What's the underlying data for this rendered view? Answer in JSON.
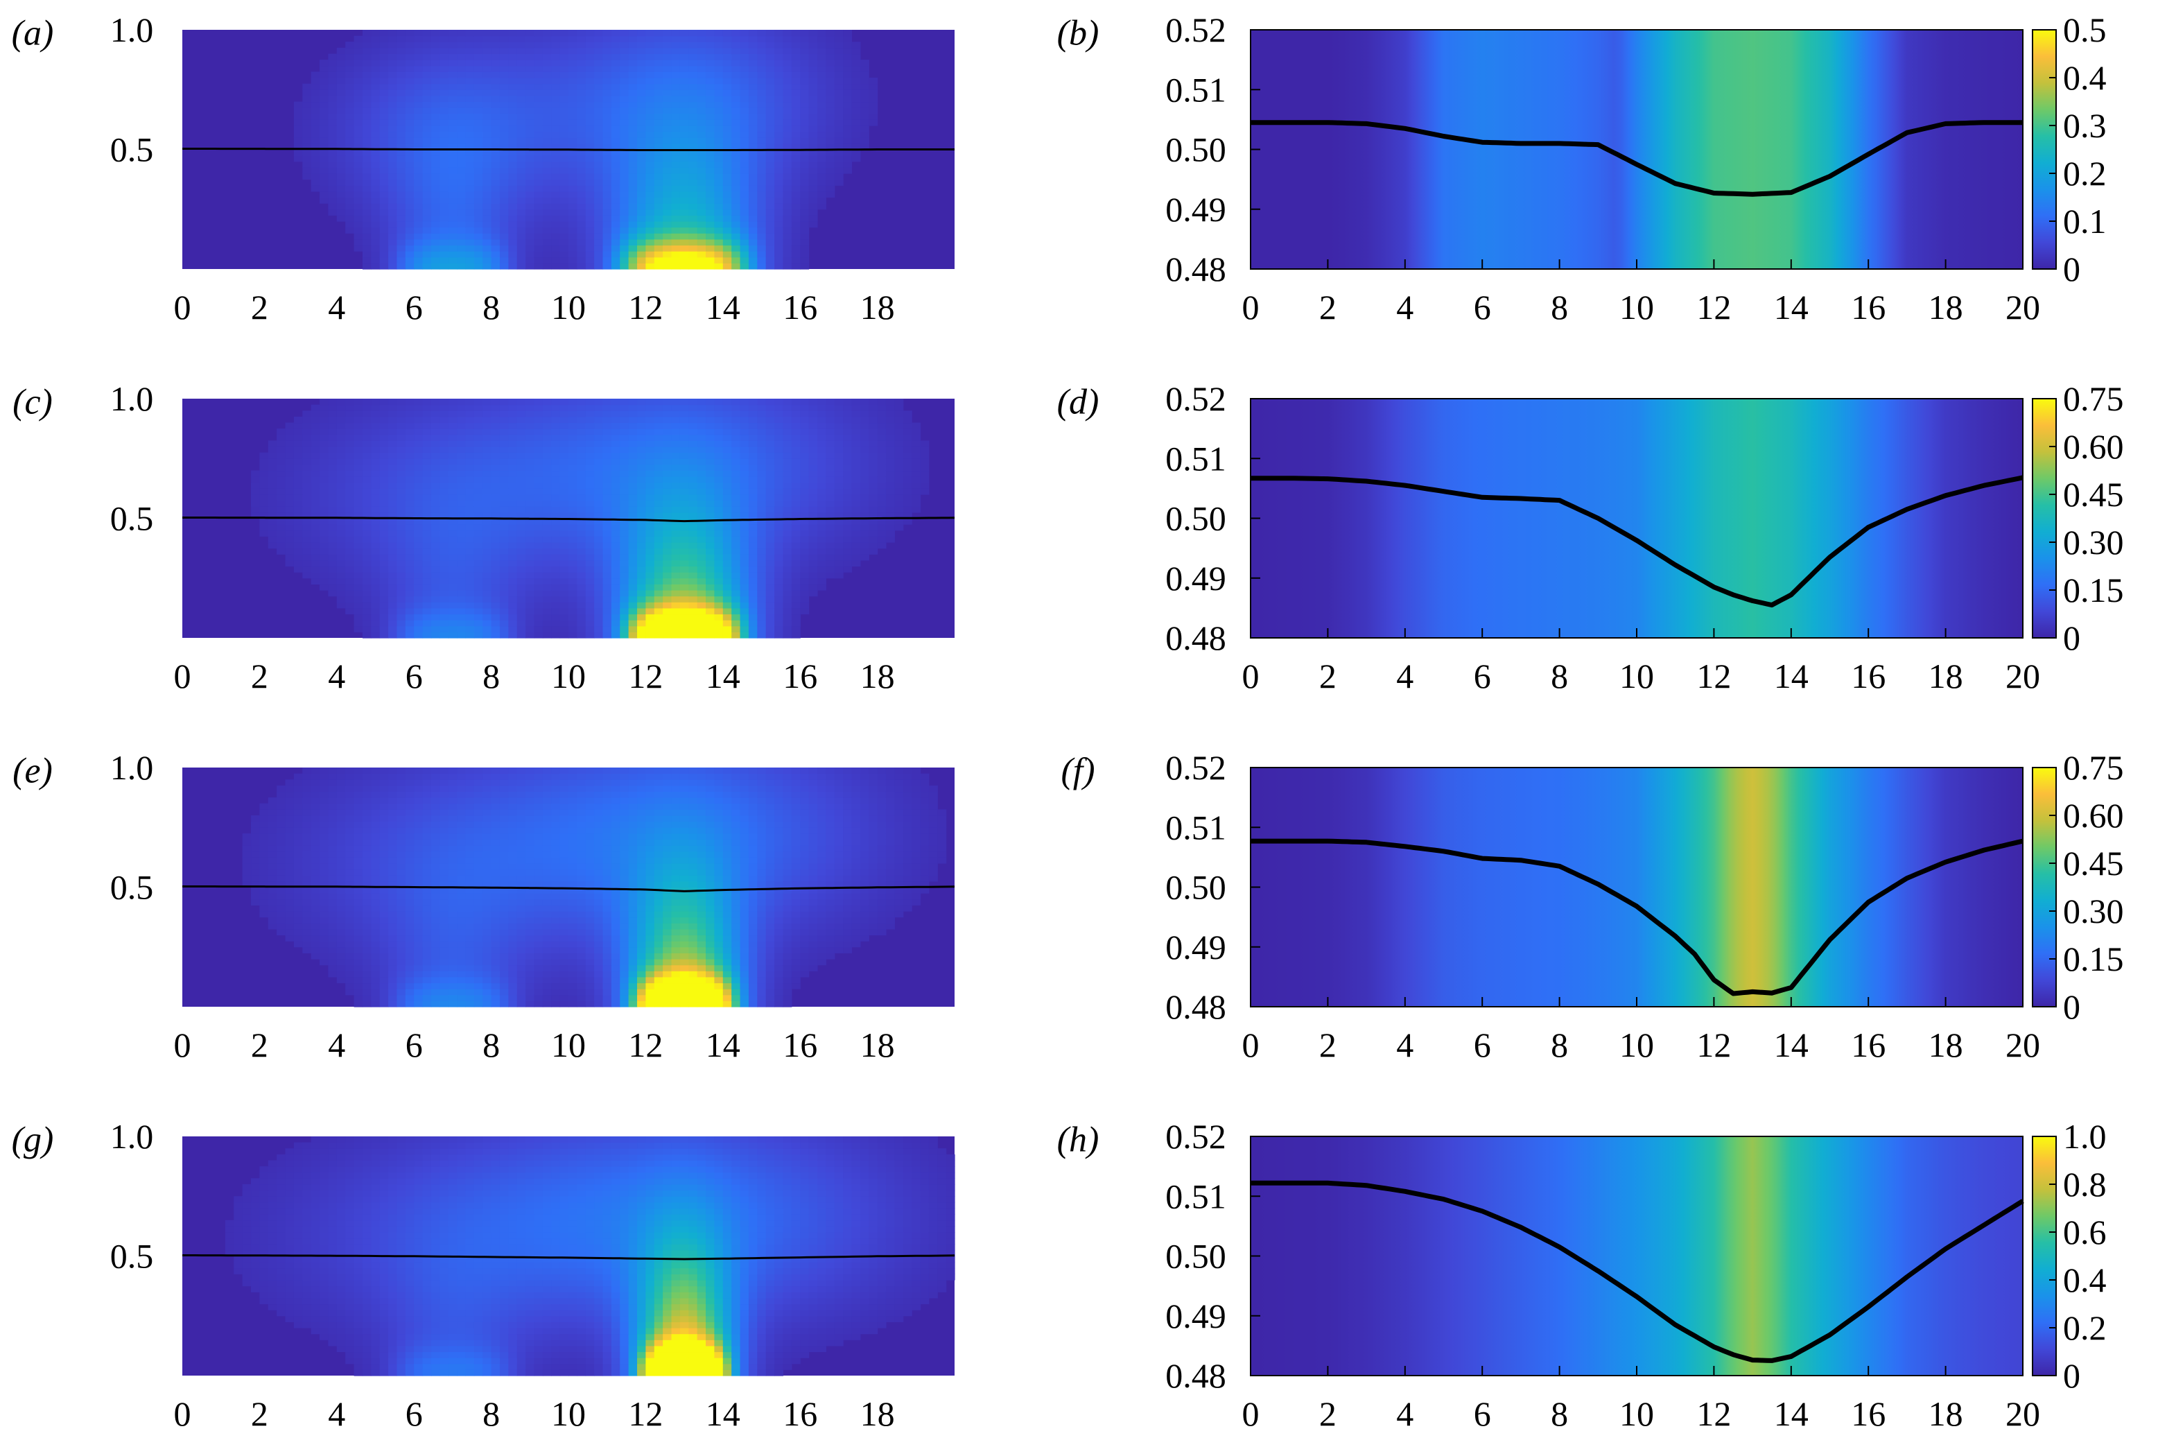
{
  "figure_colors": {
    "colormap": [
      "#3e26a8",
      "#4148d8",
      "#2f6ff6",
      "#1a92ea",
      "#11aed2",
      "#26bfa6",
      "#6fc967",
      "#c4c13c",
      "#fbbe3a",
      "#f9fb0e"
    ],
    "interface_line": "#000000"
  },
  "chart_data": [
    {
      "panel": "(a)",
      "type": "heatmap",
      "xlim": [
        0,
        20
      ],
      "ylim": [
        0,
        1.0
      ],
      "xticks": [
        "0",
        "2",
        "4",
        "6",
        "8",
        "10",
        "12",
        "14",
        "16",
        "18"
      ],
      "yticks": [
        "1.0",
        "0.5"
      ],
      "field": {
        "scale": 0.52,
        "plumes": [
          {
            "x": 7,
            "width": 1.6,
            "amp": 0.16,
            "cap_y": 0.58,
            "cap_wx": 3.2,
            "cap_wy": 0.38,
            "cap_amp": 0.16
          },
          {
            "x": 13,
            "width": 1.8,
            "amp": 0.5,
            "cap_y": 0.7,
            "cap_wx": 3.6,
            "cap_wy": 0.4,
            "cap_amp": 0.2
          }
        ]
      },
      "interface": {
        "x": [
          0,
          4,
          6,
          8,
          10,
          12,
          13,
          14,
          16,
          18,
          20
        ],
        "y": [
          0.503,
          0.502,
          0.5,
          0.5,
          0.499,
          0.497,
          0.497,
          0.497,
          0.498,
          0.5,
          0.5
        ]
      }
    },
    {
      "panel": "(b)",
      "type": "heatmap_line",
      "xlim": [
        0,
        20
      ],
      "ylim": [
        0.48,
        0.52
      ],
      "xticks": [
        "0",
        "2",
        "4",
        "6",
        "8",
        "10",
        "12",
        "14",
        "16",
        "18",
        "20"
      ],
      "yticks": [
        "0.52",
        "0.51",
        "0.50",
        "0.49",
        "0.48"
      ],
      "colorbar_ticks": [
        "0.5",
        "0.4",
        "0.3",
        "0.2",
        "0.1",
        "0"
      ],
      "colorbar_range": [
        0,
        0.5
      ],
      "field_profile": {
        "x": [
          0,
          2,
          3,
          4,
          5,
          6,
          7,
          8,
          9,
          9.5,
          10,
          11,
          12,
          13,
          14,
          15,
          16,
          17,
          18,
          20
        ],
        "v": [
          0.0,
          0.0,
          0.01,
          0.04,
          0.12,
          0.14,
          0.13,
          0.12,
          0.1,
          0.08,
          0.14,
          0.24,
          0.3,
          0.31,
          0.3,
          0.24,
          0.12,
          0.03,
          0.01,
          0.0
        ]
      },
      "interface": {
        "x": [
          0,
          1,
          2,
          3,
          4,
          5,
          6,
          7,
          8,
          9,
          10,
          11,
          12,
          13,
          14,
          15,
          16,
          17,
          18,
          19,
          20
        ],
        "y": [
          0.5045,
          0.5045,
          0.5045,
          0.5043,
          0.5035,
          0.5022,
          0.5012,
          0.501,
          0.501,
          0.5008,
          0.4975,
          0.4943,
          0.4927,
          0.4925,
          0.4928,
          0.4955,
          0.4992,
          0.5028,
          0.5043,
          0.5045,
          0.5045
        ]
      }
    },
    {
      "panel": "(c)",
      "type": "heatmap",
      "xlim": [
        0,
        20
      ],
      "ylim": [
        0,
        1.0
      ],
      "xticks": [
        "0",
        "2",
        "4",
        "6",
        "8",
        "10",
        "12",
        "14",
        "16",
        "18"
      ],
      "yticks": [
        "1.0",
        "0.5"
      ],
      "field": {
        "scale": 0.78,
        "plumes": [
          {
            "x": 7,
            "width": 1.7,
            "amp": 0.12,
            "cap_y": 0.6,
            "cap_wx": 4.4,
            "cap_wy": 0.42,
            "cap_amp": 0.12
          },
          {
            "x": 13,
            "width": 1.6,
            "amp": 0.7,
            "cap_y": 0.72,
            "cap_wx": 4.6,
            "cap_wy": 0.42,
            "cap_amp": 0.2
          }
        ]
      },
      "interface": {
        "x": [
          0,
          4,
          6,
          8,
          10,
          12,
          13,
          14,
          16,
          18,
          20
        ],
        "y": [
          0.503,
          0.502,
          0.5,
          0.499,
          0.497,
          0.493,
          0.488,
          0.492,
          0.497,
          0.5,
          0.502
        ]
      }
    },
    {
      "panel": "(d)",
      "type": "heatmap_line",
      "xlim": [
        0,
        20
      ],
      "ylim": [
        0.48,
        0.52
      ],
      "xticks": [
        "0",
        "2",
        "4",
        "6",
        "8",
        "10",
        "12",
        "14",
        "16",
        "18",
        "20"
      ],
      "yticks": [
        "0.52",
        "0.51",
        "0.50",
        "0.49",
        "0.48"
      ],
      "colorbar_ticks": [
        "0.75",
        "0.60",
        "0.45",
        "0.30",
        "0.15",
        "0"
      ],
      "colorbar_range": [
        0,
        0.75
      ],
      "field_profile": {
        "x": [
          0,
          2,
          3,
          4,
          5,
          6,
          7,
          8,
          9,
          10,
          11,
          12,
          13,
          14,
          15,
          16,
          17,
          18,
          19,
          20
        ],
        "v": [
          0.0,
          0.01,
          0.04,
          0.1,
          0.15,
          0.17,
          0.18,
          0.19,
          0.2,
          0.22,
          0.3,
          0.38,
          0.42,
          0.38,
          0.3,
          0.2,
          0.12,
          0.05,
          0.02,
          0.0
        ]
      },
      "interface": {
        "x": [
          0,
          1,
          2,
          3,
          4,
          5,
          6,
          7,
          8,
          9,
          10,
          11,
          12,
          12.5,
          13,
          13.5,
          14,
          15,
          16,
          17,
          18,
          19,
          20
        ],
        "y": [
          0.5067,
          0.5067,
          0.5066,
          0.5062,
          0.5055,
          0.5045,
          0.5035,
          0.5033,
          0.503,
          0.5,
          0.4963,
          0.4922,
          0.4885,
          0.4872,
          0.4862,
          0.4855,
          0.4872,
          0.4935,
          0.4985,
          0.5015,
          0.5038,
          0.5055,
          0.5068
        ]
      }
    },
    {
      "panel": "(e)",
      "type": "heatmap",
      "xlim": [
        0,
        20
      ],
      "ylim": [
        0,
        1.0
      ],
      "xticks": [
        "0",
        "2",
        "4",
        "6",
        "8",
        "10",
        "12",
        "14",
        "16",
        "18"
      ],
      "yticks": [
        "1.0",
        "0.5"
      ],
      "field": {
        "scale": 0.78,
        "plumes": [
          {
            "x": 7,
            "width": 1.7,
            "amp": 0.12,
            "cap_y": 0.6,
            "cap_wx": 4.6,
            "cap_wy": 0.44,
            "cap_amp": 0.12
          },
          {
            "x": 13,
            "width": 1.4,
            "amp": 0.75,
            "cap_y": 0.72,
            "cap_wx": 4.8,
            "cap_wy": 0.44,
            "cap_amp": 0.22
          }
        ]
      },
      "interface": {
        "x": [
          0,
          4,
          6,
          8,
          10,
          12,
          13,
          14,
          16,
          18,
          20
        ],
        "y": [
          0.503,
          0.502,
          0.5,
          0.498,
          0.495,
          0.49,
          0.483,
          0.488,
          0.495,
          0.499,
          0.502
        ]
      }
    },
    {
      "panel": "(f)",
      "type": "heatmap_line",
      "xlim": [
        0,
        20
      ],
      "ylim": [
        0.48,
        0.52
      ],
      "xticks": [
        "0",
        "2",
        "4",
        "6",
        "8",
        "10",
        "12",
        "14",
        "16",
        "18",
        "20"
      ],
      "yticks": [
        "0.52",
        "0.51",
        "0.50",
        "0.49",
        "0.48"
      ],
      "colorbar_ticks": [
        "0.75",
        "0.60",
        "0.45",
        "0.30",
        "0.15",
        "0"
      ],
      "colorbar_range": [
        0,
        0.75
      ],
      "field_profile": {
        "x": [
          0,
          2,
          3,
          4,
          5,
          6,
          7,
          8,
          9,
          10,
          11,
          12,
          12.5,
          13,
          13.5,
          14,
          15,
          16,
          17,
          18,
          19,
          20
        ],
        "v": [
          0.0,
          0.01,
          0.03,
          0.08,
          0.13,
          0.15,
          0.16,
          0.17,
          0.19,
          0.22,
          0.32,
          0.45,
          0.55,
          0.6,
          0.55,
          0.45,
          0.3,
          0.2,
          0.12,
          0.05,
          0.02,
          0.0
        ]
      },
      "interface": {
        "x": [
          0,
          1,
          2,
          3,
          4,
          5,
          6,
          7,
          8,
          9,
          10,
          11,
          11.5,
          12,
          12.5,
          13,
          13.5,
          14,
          15,
          16,
          17,
          18,
          19,
          20
        ],
        "y": [
          0.5077,
          0.5077,
          0.5077,
          0.5075,
          0.5068,
          0.506,
          0.5048,
          0.5045,
          0.5035,
          0.5005,
          0.4968,
          0.4918,
          0.4888,
          0.4845,
          0.4822,
          0.4825,
          0.4823,
          0.4832,
          0.4912,
          0.4975,
          0.5015,
          0.5042,
          0.5062,
          0.5077
        ]
      }
    },
    {
      "panel": "(g)",
      "type": "heatmap",
      "xlim": [
        0,
        20
      ],
      "ylim": [
        0,
        1.0
      ],
      "xticks": [
        "0",
        "2",
        "4",
        "6",
        "8",
        "10",
        "12",
        "14",
        "16",
        "18"
      ],
      "yticks": [
        "1.0",
        "0.5"
      ],
      "field": {
        "scale": 1.0,
        "plumes": [
          {
            "x": 7,
            "width": 1.7,
            "amp": 0.1,
            "cap_y": 0.58,
            "cap_wx": 5.2,
            "cap_wy": 0.44,
            "cap_amp": 0.1
          },
          {
            "x": 13,
            "width": 1.2,
            "amp": 0.85,
            "cap_y": 0.66,
            "cap_wx": 5.4,
            "cap_wy": 0.44,
            "cap_amp": 0.22
          }
        ]
      },
      "interface": {
        "x": [
          0,
          4,
          6,
          8,
          10,
          12,
          13,
          14,
          16,
          18,
          20
        ],
        "y": [
          0.503,
          0.501,
          0.499,
          0.496,
          0.493,
          0.489,
          0.487,
          0.489,
          0.494,
          0.499,
          0.502
        ]
      }
    },
    {
      "panel": "(h)",
      "type": "heatmap_line",
      "xlim": [
        0,
        20
      ],
      "ylim": [
        0.48,
        0.52
      ],
      "xticks": [
        "0",
        "2",
        "4",
        "6",
        "8",
        "10",
        "12",
        "14",
        "16",
        "18",
        "20"
      ],
      "yticks": [
        "0.52",
        "0.51",
        "0.50",
        "0.49",
        "0.48"
      ],
      "colorbar_ticks": [
        "1.0",
        "0.8",
        "0.6",
        "0.4",
        "0.2",
        "0"
      ],
      "colorbar_range": [
        0,
        1.0
      ],
      "field_profile": {
        "x": [
          0,
          2,
          3,
          4,
          5,
          6,
          7,
          8,
          9,
          10,
          11,
          12,
          12.5,
          13,
          13.5,
          14,
          15,
          16,
          17,
          18,
          19,
          20
        ],
        "v": [
          0.0,
          0.01,
          0.03,
          0.06,
          0.1,
          0.14,
          0.18,
          0.22,
          0.28,
          0.34,
          0.42,
          0.55,
          0.65,
          0.72,
          0.65,
          0.55,
          0.42,
          0.3,
          0.2,
          0.15,
          0.12,
          0.1
        ]
      },
      "interface": {
        "x": [
          0,
          1,
          2,
          3,
          4,
          5,
          6,
          7,
          8,
          9,
          10,
          11,
          12,
          12.5,
          13,
          13.5,
          14,
          15,
          16,
          17,
          18,
          19,
          20
        ],
        "y": [
          0.5122,
          0.5122,
          0.5122,
          0.5118,
          0.5108,
          0.5095,
          0.5075,
          0.5048,
          0.5015,
          0.4975,
          0.4932,
          0.4885,
          0.4848,
          0.4835,
          0.4826,
          0.4825,
          0.4832,
          0.4868,
          0.4915,
          0.4965,
          0.5012,
          0.5052,
          0.5092
        ]
      }
    }
  ]
}
